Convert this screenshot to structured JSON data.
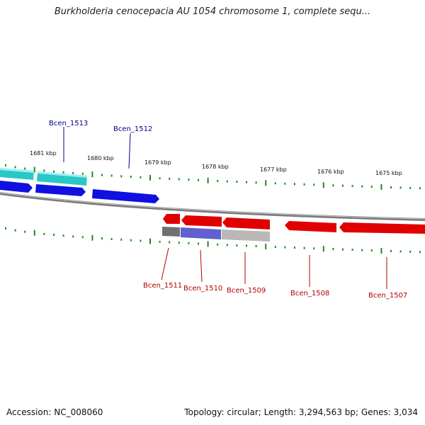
{
  "title": "Burkholderia cenocepacia AU 1054 chromosome 1, complete sequ...",
  "footer": {
    "accession": "Accession: NC_008060",
    "summary": "Topology: circular; Length: 3,294,563 bp; Genes: 3,034"
  },
  "colors": {
    "backbone": "#7a7a7a",
    "tick": "#1e8a1e",
    "forward_gene": "#1010e0",
    "forward_alt": "#28c8c8",
    "reverse_gene": "#e00000",
    "reverse_alt": "#6060d0",
    "grey_feature": "#b8b8b8",
    "forward_label": "#00008b",
    "reverse_label": "#b00000"
  },
  "kbp_labels": [
    "1681 kbp",
    "1680 kbp",
    "1679 kbp",
    "1678 kbp",
    "1677 kbp",
    "1676 kbp",
    "1675 kbp"
  ],
  "forward_genes": [
    "Bcen_1513",
    "Bcen_1512"
  ],
  "reverse_genes": [
    "Bcen_1511",
    "Bcen_1510",
    "Bcen_1509",
    "Bcen_1508",
    "Bcen_1507"
  ]
}
